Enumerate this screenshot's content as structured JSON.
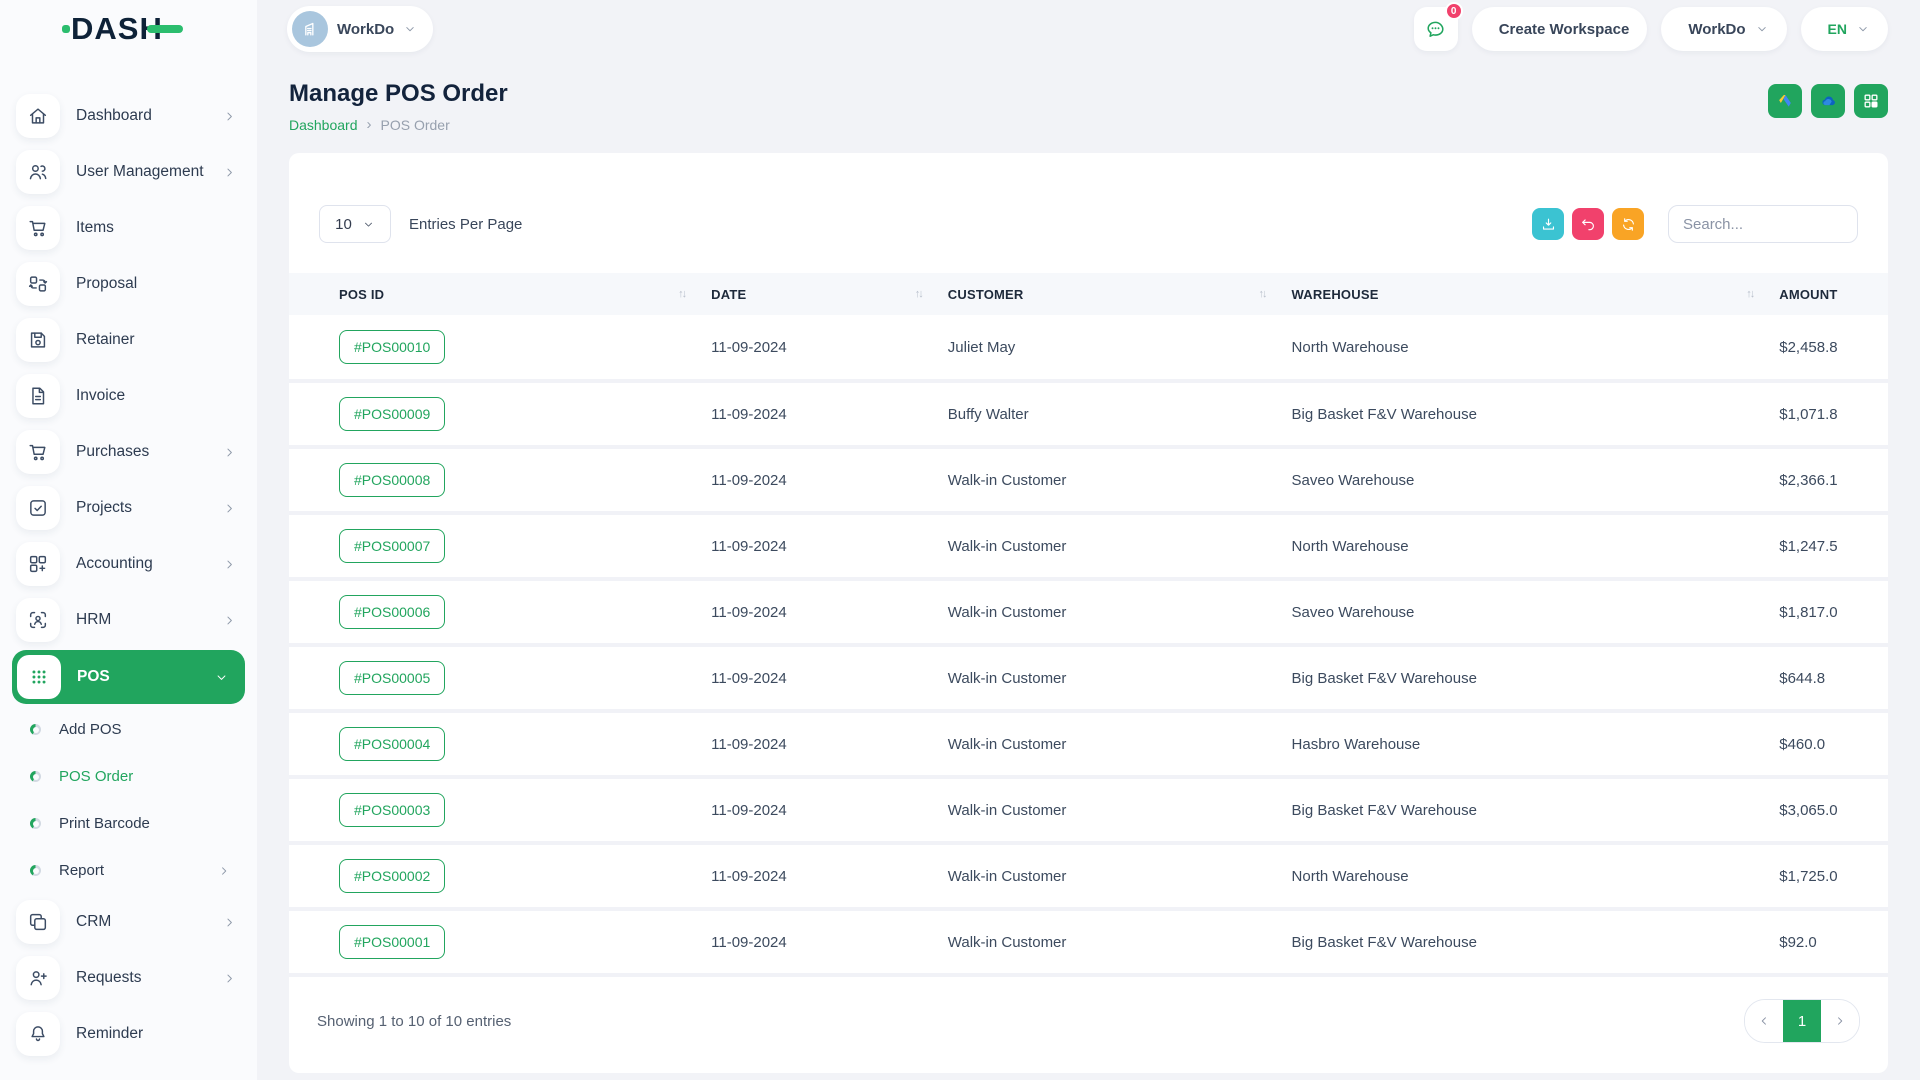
{
  "topbar": {
    "logo_text": "DASH",
    "workspace_selector": {
      "label": "WorkDo",
      "avatar_icon": "building-icon"
    },
    "chat": {
      "icon": "chat-icon",
      "badge": "0"
    },
    "create_workspace": {
      "icon": "plus-circle-icon",
      "label": "Create Workspace"
    },
    "workdo_menu": {
      "icon": "workdo-grid-icon",
      "label": "WorkDo"
    },
    "language": {
      "icon": "globe-icon",
      "label": "EN"
    }
  },
  "sidebar": {
    "items": [
      {
        "label": "Dashboard",
        "icon": "home-icon",
        "chevron": true
      },
      {
        "label": "User Management",
        "icon": "users-icon",
        "chevron": true
      },
      {
        "label": "Items",
        "icon": "cart-icon",
        "chevron": false
      },
      {
        "label": "Proposal",
        "icon": "proposal-icon",
        "chevron": false
      },
      {
        "label": "Retainer",
        "icon": "save-icon",
        "chevron": false
      },
      {
        "label": "Invoice",
        "icon": "invoice-icon",
        "chevron": false
      },
      {
        "label": "Purchases",
        "icon": "cart-icon",
        "chevron": true
      },
      {
        "label": "Projects",
        "icon": "check-square-icon",
        "chevron": true
      },
      {
        "label": "Accounting",
        "icon": "grid-plus-icon",
        "chevron": true
      },
      {
        "label": "HRM",
        "icon": "scan-user-icon",
        "chevron": true
      },
      {
        "label": "POS",
        "icon": "dots-grid-icon",
        "chevron": true,
        "active": true,
        "submenu": [
          {
            "label": "Add POS"
          },
          {
            "label": "POS Order",
            "active": true
          },
          {
            "label": "Print Barcode"
          },
          {
            "label": "Report",
            "chevron": true
          }
        ]
      },
      {
        "label": "CRM",
        "icon": "copy-icon",
        "chevron": true
      },
      {
        "label": "Requests",
        "icon": "user-plus-icon",
        "chevron": true
      },
      {
        "label": "Reminder",
        "icon": "bell-icon",
        "chevron": false
      }
    ]
  },
  "page": {
    "title": "Manage POS Order",
    "breadcrumb": {
      "home": "Dashboard",
      "separator": "›",
      "current": "POS Order"
    },
    "header_actions": [
      {
        "icon": "google-drive-icon"
      },
      {
        "icon": "onedrive-icon"
      },
      {
        "icon": "apps-grid-icon"
      }
    ]
  },
  "controls": {
    "entries_value": "10",
    "entries_label": "Entries Per Page",
    "search_placeholder": "Search...",
    "buttons": [
      {
        "icon": "download-icon",
        "color": "#3bc3d2"
      },
      {
        "icon": "undo-icon",
        "color": "#f1416c"
      },
      {
        "icon": "refresh-icon",
        "color": "#f9a425"
      }
    ]
  },
  "table": {
    "columns": [
      {
        "label": "POS ID",
        "sortable": true
      },
      {
        "label": "DATE",
        "sortable": true
      },
      {
        "label": "CUSTOMER",
        "sortable": true
      },
      {
        "label": "WAREHOUSE",
        "sortable": true
      },
      {
        "label": "AMOUNT",
        "sortable": false
      }
    ],
    "rows": [
      {
        "pos_id": "#POS00010",
        "date": "11-09-2024",
        "customer": "Juliet May",
        "warehouse": "North Warehouse",
        "amount": "$2,458.8"
      },
      {
        "pos_id": "#POS00009",
        "date": "11-09-2024",
        "customer": "Buffy Walter",
        "warehouse": "Big Basket F&V Warehouse",
        "amount": "$1,071.8"
      },
      {
        "pos_id": "#POS00008",
        "date": "11-09-2024",
        "customer": "Walk-in Customer",
        "warehouse": "Saveo Warehouse",
        "amount": "$2,366.1"
      },
      {
        "pos_id": "#POS00007",
        "date": "11-09-2024",
        "customer": "Walk-in Customer",
        "warehouse": "North Warehouse",
        "amount": "$1,247.5"
      },
      {
        "pos_id": "#POS00006",
        "date": "11-09-2024",
        "customer": "Walk-in Customer",
        "warehouse": "Saveo Warehouse",
        "amount": "$1,817.0"
      },
      {
        "pos_id": "#POS00005",
        "date": "11-09-2024",
        "customer": "Walk-in Customer",
        "warehouse": "Big Basket F&V Warehouse",
        "amount": "$644.8"
      },
      {
        "pos_id": "#POS00004",
        "date": "11-09-2024",
        "customer": "Walk-in Customer",
        "warehouse": "Hasbro Warehouse",
        "amount": "$460.0"
      },
      {
        "pos_id": "#POS00003",
        "date": "11-09-2024",
        "customer": "Walk-in Customer",
        "warehouse": "Big Basket F&V Warehouse",
        "amount": "$3,065.0"
      },
      {
        "pos_id": "#POS00002",
        "date": "11-09-2024",
        "customer": "Walk-in Customer",
        "warehouse": "North Warehouse",
        "amount": "$1,725.0"
      },
      {
        "pos_id": "#POS00001",
        "date": "11-09-2024",
        "customer": "Walk-in Customer",
        "warehouse": "Big Basket F&V Warehouse",
        "amount": "$92.0"
      }
    ]
  },
  "footer": {
    "showing_text": "Showing 1 to 10 of 10 entries",
    "pagination": {
      "prev": "prev",
      "current": "1",
      "next": "next"
    }
  },
  "colors": {
    "primary_green": "#21a55e",
    "logo_green": "#2bbd6e",
    "teal": "#3bc3d2",
    "pink": "#f1416c",
    "orange": "#f9a425",
    "header_bg": "#f6f8fb",
    "page_bg": "#f2f3f7"
  }
}
